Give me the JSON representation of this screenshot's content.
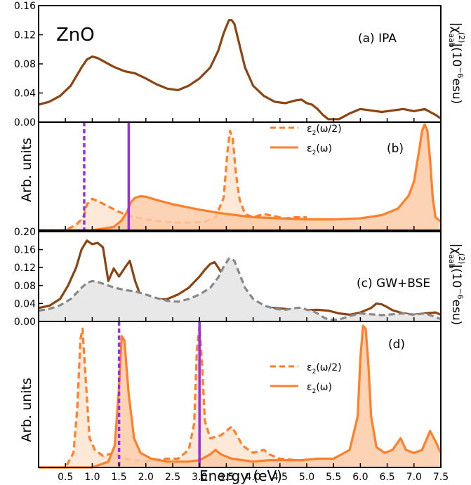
{
  "figure": {
    "material_label": "ZnO",
    "xlabel": "Energy (eV)",
    "right_label_top": "|χ",
    "right_label_top_sup": "(2)",
    "right_label_top_sub": "aab",
    "right_label_top_unit": "|(10",
    "right_label_top_exp": "−6",
    "right_label_top_esu": "esu)",
    "arb_units": "Arb. units",
    "legend_half": "ε",
    "legend_half_arg": "(ω/2)",
    "legend_full": "ε",
    "legend_full_arg": "(ω)",
    "legend_sub": "2"
  },
  "colors": {
    "brown": "#8B4513",
    "orange": "#FF7F2A",
    "orange_fill": "#FCCBA8",
    "gray": "#888888",
    "gray_fill": "#E8E8E8",
    "purple": "#9B30D9"
  },
  "chart_data": [
    {
      "panel": "a",
      "type": "line",
      "annotation": "(a) IPA",
      "xlim": [
        0.0,
        7.5
      ],
      "ylim": [
        0.0,
        0.16
      ],
      "yticks": [
        "0.00",
        "0.04",
        "0.08",
        "0.12",
        "0.16"
      ],
      "series": [
        {
          "color": "brown",
          "x": [
            0.0,
            0.2,
            0.4,
            0.6,
            0.8,
            0.9,
            1.0,
            1.1,
            1.2,
            1.4,
            1.6,
            1.8,
            2.0,
            2.2,
            2.4,
            2.6,
            2.8,
            3.0,
            3.2,
            3.35,
            3.45,
            3.55,
            3.6,
            3.65,
            3.75,
            3.85,
            4.0,
            4.2,
            4.4,
            4.6,
            4.8,
            4.9,
            5.0,
            5.1,
            5.2,
            5.3,
            5.4,
            5.5,
            5.6,
            5.8,
            6.0,
            6.2,
            6.4,
            6.6,
            6.8,
            7.0,
            7.2,
            7.3,
            7.4,
            7.5
          ],
          "y": [
            0.024,
            0.028,
            0.036,
            0.05,
            0.075,
            0.086,
            0.09,
            0.088,
            0.084,
            0.076,
            0.07,
            0.067,
            0.06,
            0.052,
            0.046,
            0.044,
            0.05,
            0.06,
            0.075,
            0.098,
            0.122,
            0.14,
            0.14,
            0.135,
            0.105,
            0.075,
            0.05,
            0.036,
            0.028,
            0.026,
            0.03,
            0.031,
            0.026,
            0.024,
            0.018,
            0.01,
            0.004,
            0.004,
            0.004,
            0.012,
            0.018,
            0.016,
            0.014,
            0.016,
            0.018,
            0.015,
            0.018,
            0.014,
            0.01,
            0.005
          ]
        }
      ]
    },
    {
      "panel": "b",
      "type": "area",
      "annotation": "(b)",
      "xlim": [
        0.0,
        7.5
      ],
      "ylim": [
        0.0,
        1.0
      ],
      "vlines": [
        {
          "x": 0.85,
          "style": "dashed",
          "color": "purple"
        },
        {
          "x": 1.68,
          "style": "solid",
          "color": "purple"
        }
      ],
      "series": [
        {
          "name": "ε2(ω/2)",
          "style": "dashed",
          "color": "orange",
          "x": [
            0.0,
            0.5,
            0.7,
            0.8,
            0.85,
            0.9,
            1.0,
            1.1,
            1.3,
            1.5,
            1.7,
            2.0,
            2.3,
            2.6,
            2.9,
            3.1,
            3.3,
            3.45,
            3.52,
            3.57,
            3.62,
            3.68,
            3.75,
            3.85,
            4.0,
            4.2,
            4.4,
            4.6,
            4.8,
            5.0
          ],
          "y": [
            0.0,
            0.0,
            0.05,
            0.1,
            0.14,
            0.24,
            0.29,
            0.27,
            0.22,
            0.17,
            0.13,
            0.1,
            0.08,
            0.07,
            0.07,
            0.08,
            0.12,
            0.3,
            0.72,
            0.92,
            0.85,
            0.52,
            0.28,
            0.15,
            0.12,
            0.15,
            0.13,
            0.11,
            0.12,
            0.12
          ]
        },
        {
          "name": "ε2(ω)",
          "style": "solid",
          "color": "orange",
          "x": [
            0.0,
            1.0,
            1.4,
            1.55,
            1.65,
            1.72,
            1.8,
            1.9,
            2.0,
            2.2,
            2.5,
            3.0,
            3.5,
            4.0,
            4.5,
            5.0,
            5.5,
            6.0,
            6.4,
            6.7,
            6.9,
            7.0,
            7.1,
            7.15,
            7.2,
            7.25,
            7.3,
            7.35,
            7.4,
            7.5
          ],
          "y": [
            0.0,
            0.0,
            0.03,
            0.09,
            0.17,
            0.26,
            0.3,
            0.315,
            0.31,
            0.28,
            0.24,
            0.19,
            0.15,
            0.12,
            0.11,
            0.1,
            0.1,
            0.11,
            0.14,
            0.2,
            0.32,
            0.45,
            0.75,
            0.92,
            0.98,
            0.92,
            0.65,
            0.3,
            0.12,
            0.08
          ]
        }
      ],
      "legend": "top-center"
    },
    {
      "panel": "c",
      "type": "line",
      "annotation": "(c) GW+BSE",
      "xlim": [
        0.0,
        7.5
      ],
      "ylim": [
        0.0,
        0.2
      ],
      "yticks": [
        "0.00",
        "0.04",
        "0.08",
        "0.12",
        "0.16",
        "0.20"
      ],
      "series": [
        {
          "color": "brown",
          "style": "solid",
          "x": [
            0.0,
            0.2,
            0.4,
            0.55,
            0.7,
            0.8,
            0.9,
            1.0,
            1.1,
            1.2,
            1.3,
            1.4,
            1.5,
            1.6,
            1.7,
            1.8,
            1.9,
            2.0,
            2.2,
            2.4,
            2.6,
            2.8,
            3.0,
            3.1,
            3.2,
            3.28,
            3.35,
            3.45,
            3.6,
            3.8,
            4.0,
            4.2,
            4.4,
            4.6,
            4.8,
            5.0,
            5.2,
            5.4,
            5.6,
            5.8,
            6.0,
            6.2,
            6.3,
            6.4,
            6.5,
            6.6,
            6.8,
            7.0,
            7.2,
            7.4,
            7.5
          ],
          "y": [
            0.03,
            0.035,
            0.05,
            0.08,
            0.12,
            0.16,
            0.18,
            0.172,
            0.175,
            0.165,
            0.09,
            0.118,
            0.1,
            0.118,
            0.135,
            0.09,
            0.058,
            0.05,
            0.048,
            0.05,
            0.06,
            0.075,
            0.1,
            0.115,
            0.128,
            0.132,
            0.12,
            0.1,
            0.065,
            0.045,
            0.035,
            0.03,
            0.03,
            0.028,
            0.025,
            0.025,
            0.026,
            0.024,
            0.018,
            0.015,
            0.02,
            0.03,
            0.04,
            0.038,
            0.032,
            0.025,
            0.018,
            0.015,
            0.018,
            0.02,
            0.015
          ]
        },
        {
          "color": "gray",
          "style": "dashed",
          "x": [
            0.0,
            0.2,
            0.4,
            0.6,
            0.8,
            0.9,
            1.0,
            1.1,
            1.2,
            1.4,
            1.6,
            1.8,
            2.0,
            2.2,
            2.4,
            2.6,
            2.8,
            3.0,
            3.2,
            3.35,
            3.45,
            3.55,
            3.6,
            3.65,
            3.75,
            3.85,
            4.0,
            4.2,
            4.4,
            4.6,
            4.8,
            4.9,
            5.0,
            5.1,
            5.2,
            5.3,
            5.4,
            5.5,
            5.6,
            5.8,
            6.0,
            6.2,
            6.4,
            6.6,
            6.8,
            7.0,
            7.2,
            7.3,
            7.4,
            7.5
          ],
          "y": [
            0.024,
            0.028,
            0.036,
            0.05,
            0.075,
            0.086,
            0.09,
            0.088,
            0.084,
            0.076,
            0.07,
            0.067,
            0.06,
            0.052,
            0.046,
            0.044,
            0.05,
            0.06,
            0.075,
            0.098,
            0.122,
            0.14,
            0.14,
            0.135,
            0.105,
            0.075,
            0.05,
            0.036,
            0.028,
            0.026,
            0.03,
            0.031,
            0.026,
            0.024,
            0.018,
            0.01,
            0.004,
            0.004,
            0.004,
            0.012,
            0.018,
            0.016,
            0.014,
            0.016,
            0.018,
            0.015,
            0.018,
            0.014,
            0.01,
            0.005
          ]
        }
      ]
    },
    {
      "panel": "d",
      "type": "area",
      "annotation": "(d)",
      "xlim": [
        0.0,
        7.5
      ],
      "ylim": [
        0.0,
        1.0
      ],
      "xticks": [
        "0.5",
        "1.0",
        "1.5",
        "2.0",
        "2.5",
        "3.0",
        "3.5",
        "4.0",
        "4.5",
        "5.0",
        "5.5",
        "6.0",
        "6.5",
        "7.0",
        "7.5"
      ],
      "vlines": [
        {
          "x": 1.5,
          "style": "dashed",
          "color": "purple"
        },
        {
          "x": 3.0,
          "style": "solid",
          "color": "purple"
        }
      ],
      "series": [
        {
          "name": "ε2(ω/2)",
          "style": "dashed",
          "color": "orange",
          "x": [
            0.0,
            0.5,
            0.65,
            0.72,
            0.78,
            0.82,
            0.88,
            0.95,
            1.05,
            1.2,
            1.4,
            1.6,
            1.8,
            2.0,
            2.2,
            2.4,
            2.6,
            2.8,
            2.9,
            2.95,
            3.0,
            3.05,
            3.1,
            3.2,
            3.4,
            3.6,
            3.7,
            3.8,
            4.0,
            4.2,
            4.3,
            4.5,
            4.8,
            5.0
          ],
          "y": [
            0.0,
            0.0,
            0.1,
            0.4,
            0.88,
            0.95,
            0.6,
            0.2,
            0.12,
            0.08,
            0.1,
            0.06,
            0.05,
            0.04,
            0.05,
            0.06,
            0.06,
            0.12,
            0.3,
            0.8,
            0.97,
            0.7,
            0.32,
            0.2,
            0.22,
            0.28,
            0.22,
            0.15,
            0.1,
            0.12,
            0.09,
            0.06,
            0.05,
            0.04
          ]
        },
        {
          "name": "ε2(ω)",
          "style": "solid",
          "color": "orange",
          "x": [
            0.0,
            1.0,
            1.3,
            1.42,
            1.5,
            1.55,
            1.6,
            1.68,
            1.78,
            1.9,
            2.1,
            2.4,
            2.8,
            3.0,
            3.2,
            3.3,
            3.4,
            3.6,
            3.8,
            4.0,
            4.3,
            4.6,
            4.9,
            5.2,
            5.5,
            5.8,
            5.95,
            6.0,
            6.05,
            6.1,
            6.15,
            6.2,
            6.3,
            6.45,
            6.6,
            6.75,
            6.85,
            7.0,
            7.15,
            7.3,
            7.4,
            7.5
          ],
          "y": [
            0.0,
            0.0,
            0.04,
            0.15,
            0.55,
            0.9,
            0.87,
            0.5,
            0.2,
            0.1,
            0.06,
            0.04,
            0.04,
            0.05,
            0.09,
            0.12,
            0.09,
            0.06,
            0.05,
            0.04,
            0.05,
            0.05,
            0.05,
            0.06,
            0.06,
            0.12,
            0.35,
            0.75,
            0.97,
            0.95,
            0.7,
            0.35,
            0.14,
            0.1,
            0.12,
            0.2,
            0.12,
            0.1,
            0.12,
            0.25,
            0.18,
            0.1
          ]
        }
      ],
      "legend": "top-center"
    }
  ]
}
